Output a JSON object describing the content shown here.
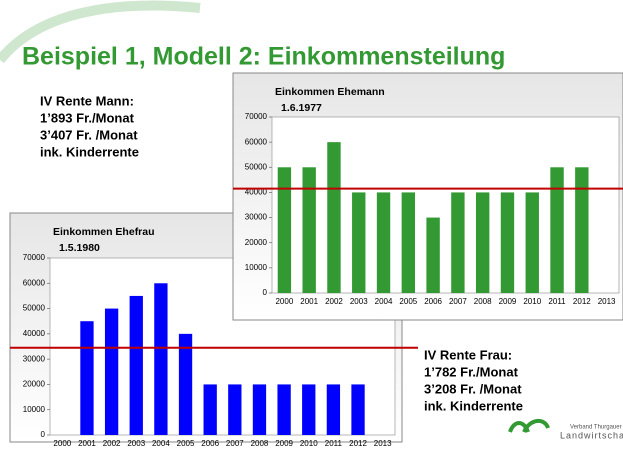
{
  "slide_title": "Beispiel 1, Modell 2: Einkommensteilung",
  "text_left": [
    "IV Rente Mann:",
    "1’893 Fr./Monat",
    "3’407 Fr. /Monat",
    "ink. Kinderrente"
  ],
  "text_right": [
    "IV Rente Frau:",
    "1’782 Fr./Monat",
    "3’208 Fr. /Monat",
    "ink. Kinderrente"
  ],
  "logo": [
    "Verband Thurgauer",
    "Landwirtschaft"
  ],
  "chart_data": [
    {
      "type": "bar",
      "title": "Einkommen Ehefrau",
      "subtitle": "1.5.1980",
      "categories": [
        "2000",
        "2001",
        "2002",
        "2003",
        "2004",
        "2005",
        "2006",
        "2007",
        "2008",
        "2009",
        "2010",
        "2011",
        "2012",
        "2013"
      ],
      "values": [
        null,
        45000,
        50000,
        55000,
        60000,
        40000,
        20000,
        20000,
        20000,
        20000,
        20000,
        20000,
        20000,
        null
      ],
      "color": "#0000ff",
      "ylim": [
        0,
        70000
      ],
      "yticks": [
        0,
        10000,
        20000,
        30000,
        40000,
        50000,
        60000,
        70000
      ],
      "reference_line": {
        "value": 34500,
        "color": "#c00000"
      }
    },
    {
      "type": "bar",
      "title": "Einkommen Ehemann",
      "subtitle": "1.6.1977",
      "categories": [
        "2000",
        "2001",
        "2002",
        "2003",
        "2004",
        "2005",
        "2006",
        "2007",
        "2008",
        "2009",
        "2010",
        "2011",
        "2012",
        "2013"
      ],
      "values": [
        50000,
        50000,
        60000,
        40000,
        40000,
        40000,
        30000,
        40000,
        40000,
        40000,
        40000,
        50000,
        50000,
        null
      ],
      "color": "#339933",
      "ylim": [
        0,
        70000
      ],
      "yticks": [
        0,
        10000,
        20000,
        30000,
        40000,
        50000,
        60000,
        70000
      ],
      "reference_line": {
        "value": 41500,
        "color": "#c00000"
      }
    }
  ]
}
